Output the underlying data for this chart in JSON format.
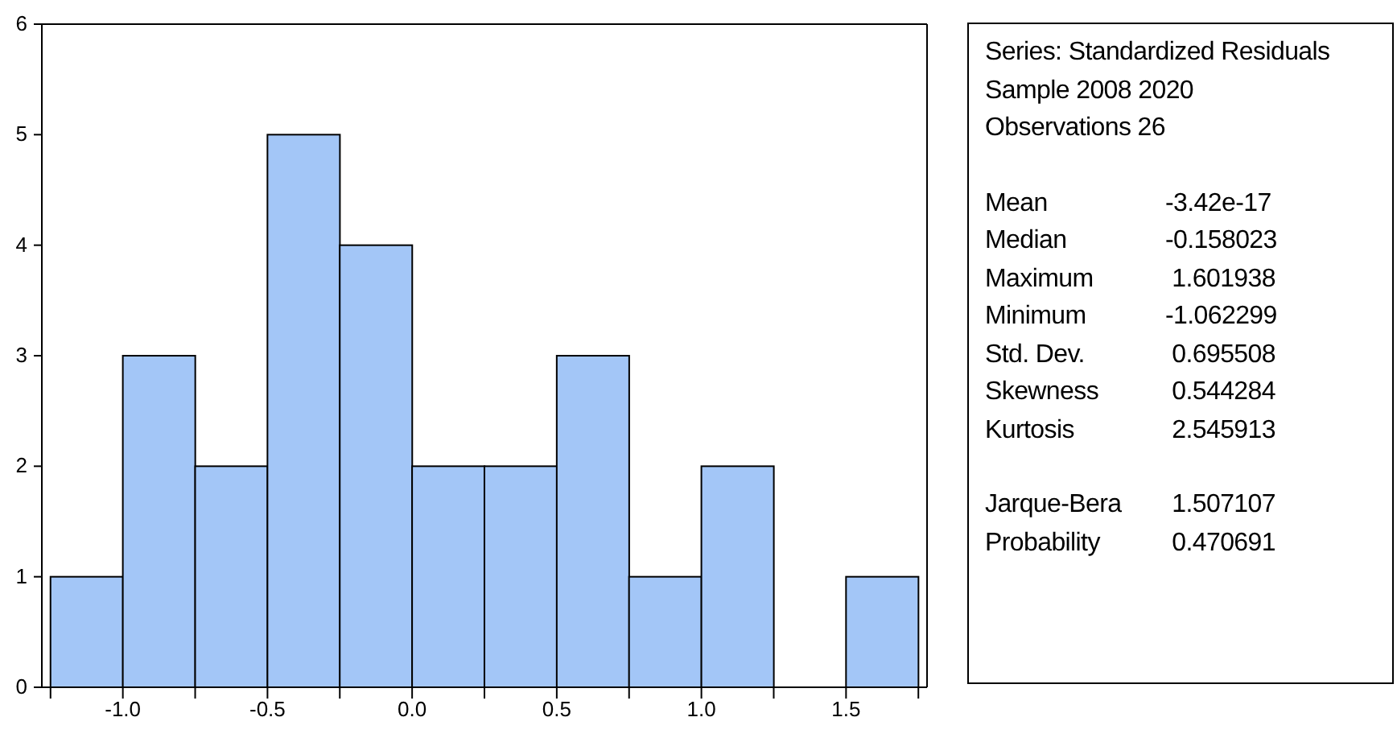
{
  "chart_data": [
    {
      "type": "histogram",
      "bins": [
        -1.25,
        -1.0,
        -0.75,
        -0.5,
        -0.25,
        0.0,
        0.25,
        0.5,
        0.75,
        1.0,
        1.25,
        1.5,
        1.75
      ],
      "values": [
        1,
        3,
        2,
        5,
        4,
        2,
        2,
        3,
        1,
        2,
        0,
        1
      ],
      "color": "#a3c6f7",
      "xlim": [
        -1.28,
        1.78
      ],
      "xticks": [
        {
          "value": -1.25,
          "label": null
        },
        {
          "value": -1.0,
          "label": "-1.0"
        },
        {
          "value": -0.75,
          "label": null
        },
        {
          "value": -0.5,
          "label": "-0.5"
        },
        {
          "value": -0.25,
          "label": null
        },
        {
          "value": 0.0,
          "label": "0.0"
        },
        {
          "value": 0.25,
          "label": null
        },
        {
          "value": 0.5,
          "label": "0.5"
        },
        {
          "value": 0.75,
          "label": null
        },
        {
          "value": 1.0,
          "label": "1.0"
        },
        {
          "value": 1.25,
          "label": null
        },
        {
          "value": 1.5,
          "label": "1.5"
        },
        {
          "value": 1.75,
          "label": null
        }
      ],
      "ylim": [
        0,
        6
      ],
      "yticks": [
        0,
        1,
        2,
        3,
        4,
        5,
        6
      ],
      "grid": false
    },
    {
      "type": "other",
      "annotations": [
        "Series: Standardized Residuals",
        "Sample 2008 2020",
        "Observations 26",
        "Mean",
        "-3.42e-17",
        "Median",
        "-0.158023",
        "Maximum",
        " 1.601938",
        "Minimum",
        "-1.062299",
        "Std. Dev.",
        " 0.695508",
        "Skewness",
        " 0.544284",
        "Kurtosis",
        " 2.545913",
        "Jarque-Bera",
        " 1.507107",
        "Probability",
        " 0.470691"
      ]
    }
  ]
}
